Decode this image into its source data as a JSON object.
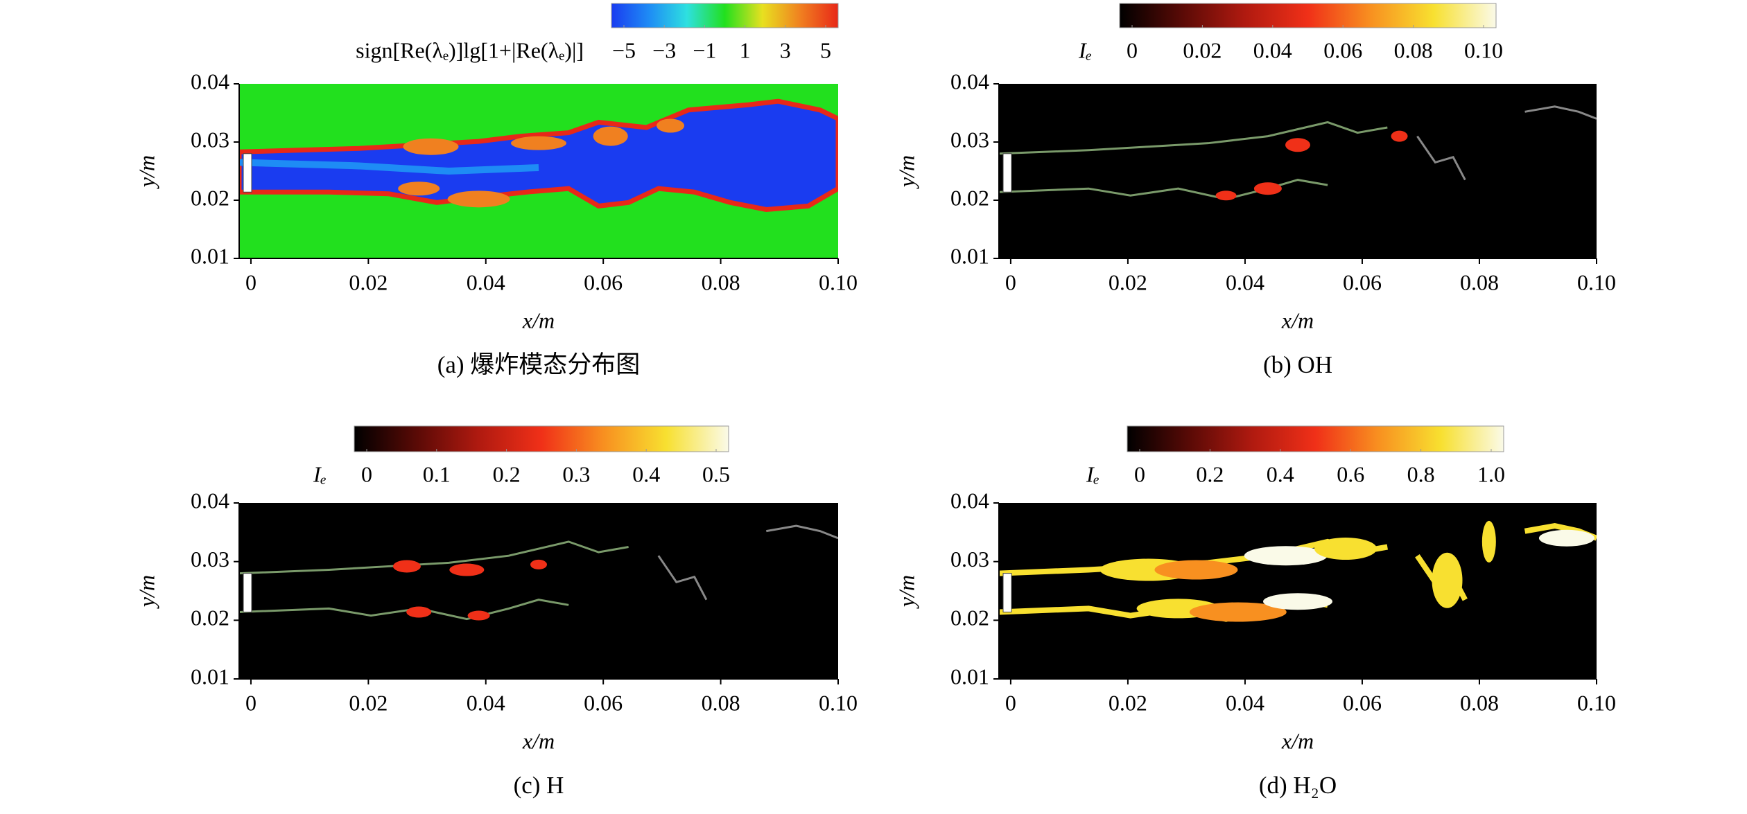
{
  "chart_data": [
    {
      "type": "contour",
      "caption": "(a) 爆炸模态分布图",
      "xlabel": "x/m",
      "ylabel": "y/m",
      "xlim": [
        -0.002,
        0.1
      ],
      "xticks": [
        0,
        0.02,
        0.04,
        0.06,
        0.08,
        {
          "value": 0.1,
          "label": "0.10"
        }
      ],
      "ylim": [
        0.01,
        0.04
      ],
      "yticks": [
        0.01,
        0.02,
        0.03,
        0.04
      ],
      "colorbar_label": "sign[Re(λₑ)]lg[1+|Re(λₑ)|]",
      "clim": [
        -5,
        5
      ],
      "cticks": [
        {
          "value": -5,
          "label": "−5"
        },
        {
          "value": -3,
          "label": "−3"
        },
        {
          "value": -1,
          "label": "−1"
        },
        1,
        3,
        5
      ],
      "colormap": [
        "#1a3cf0",
        "#1e8cf5",
        "#2ee0e0",
        "#22e01e",
        "#e8e020",
        "#f08020",
        "#e82818"
      ]
    },
    {
      "type": "contour",
      "caption": "(b) OH",
      "xlabel": "x/m",
      "ylabel": "y/m",
      "xlim": [
        -0.002,
        0.1
      ],
      "xticks": [
        0,
        0.02,
        0.04,
        0.06,
        0.08,
        {
          "value": 0.1,
          "label": "0.10"
        }
      ],
      "ylim": [
        0.01,
        0.04
      ],
      "yticks": [
        0.01,
        0.02,
        0.03,
        0.04
      ],
      "colorbar_label": "Iₑ",
      "clim": [
        0,
        0.1
      ],
      "cticks": [
        0,
        0.02,
        0.04,
        0.06,
        0.08,
        {
          "value": 0.1,
          "label": "0.10"
        }
      ],
      "colormap": [
        "#000000",
        "#5a0a06",
        "#b01a10",
        "#f03018",
        "#f89020",
        "#f8e030",
        "#fafae8"
      ]
    },
    {
      "type": "contour",
      "caption": "(c) H",
      "xlabel": "x/m",
      "ylabel": "y/m",
      "xlim": [
        -0.002,
        0.1
      ],
      "xticks": [
        0,
        0.02,
        0.04,
        0.06,
        0.08,
        {
          "value": 0.1,
          "label": "0.10"
        }
      ],
      "ylim": [
        0.01,
        0.04
      ],
      "yticks": [
        0.01,
        0.02,
        0.03,
        0.04
      ],
      "colorbar_label": "Iₑ",
      "clim": [
        0,
        0.5
      ],
      "cticks": [
        0,
        0.1,
        0.2,
        0.3,
        0.4,
        0.5
      ],
      "colormap": [
        "#000000",
        "#5a0a06",
        "#b01a10",
        "#f03018",
        "#f89020",
        "#f8e030",
        "#fafae8"
      ]
    },
    {
      "type": "contour",
      "caption": "(d) H₂O",
      "xlabel": "x/m",
      "ylabel": "y/m",
      "xlim": [
        -0.002,
        0.1
      ],
      "xticks": [
        0,
        0.02,
        0.04,
        0.06,
        0.08,
        {
          "value": 0.1,
          "label": "0.10"
        }
      ],
      "ylim": [
        0.01,
        0.04
      ],
      "yticks": [
        0.01,
        0.02,
        0.03,
        0.04
      ],
      "colorbar_label": "Iₑ",
      "clim": [
        0,
        1
      ],
      "cticks": [
        0,
        0.2,
        0.4,
        0.6,
        0.8,
        {
          "value": 1,
          "label": "1.0"
        }
      ],
      "colormap": [
        "#000000",
        "#5a0a06",
        "#b01a10",
        "#f03018",
        "#f89020",
        "#f8e030",
        "#fafae8"
      ]
    }
  ]
}
